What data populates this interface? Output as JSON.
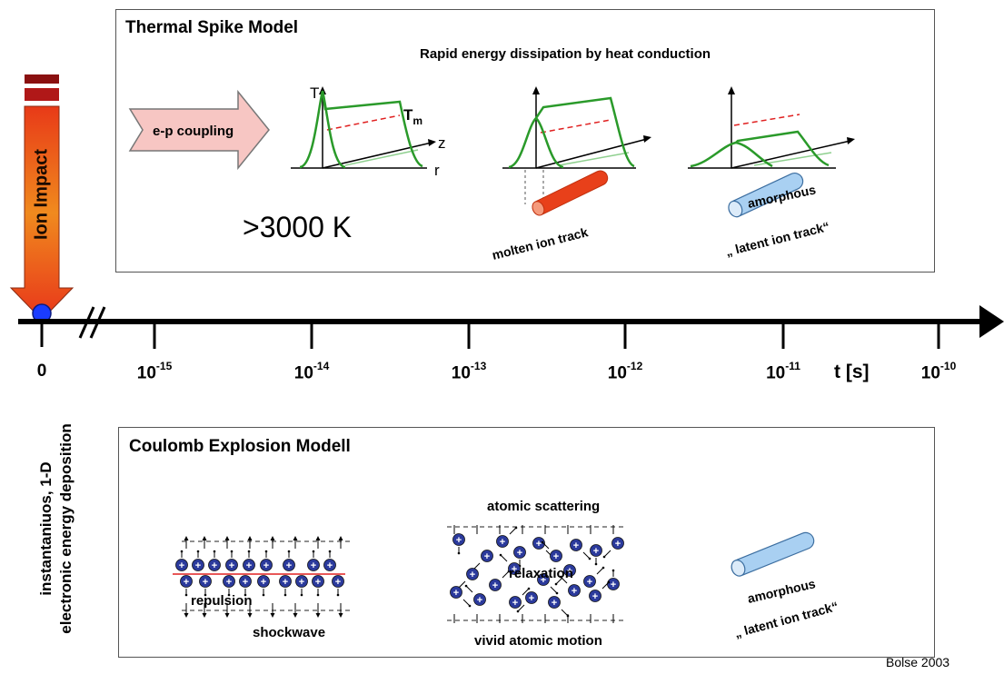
{
  "thermal_box": {
    "title": "Thermal Spike Model",
    "subtitle": "Rapid energy dissipation by heat conduction",
    "ep_coupling": "e-p coupling",
    "temperature": ">3000 K",
    "axis_T": "T",
    "axis_Tm": "T",
    "axis_Tm_sub": "m",
    "axis_z": "z",
    "axis_r": "r",
    "molten_label": "molten ion track",
    "amorphous_line1": "amorphous",
    "amorphous_line2": "„ latent ion track“"
  },
  "ion_impact": {
    "label": "Ion Impact"
  },
  "timeline": {
    "zero": "0",
    "unit": "t [s]",
    "ticks": [
      {
        "base": "10",
        "exp": "-15"
      },
      {
        "base": "10",
        "exp": "-14"
      },
      {
        "base": "10",
        "exp": "-13"
      },
      {
        "base": "10",
        "exp": "-12"
      },
      {
        "base": "10",
        "exp": "-11"
      },
      {
        "base": "10",
        "exp": "-10"
      }
    ]
  },
  "side_note": {
    "line1": "instantaniuos, 1-D",
    "line2": "electronic energy deposition"
  },
  "coulomb_box": {
    "title": "Coulomb Explosion Modell",
    "repulsion": "repulsion",
    "shockwave": "shockwave",
    "atomic_scattering": "atomic scattering",
    "relaxation": "relaxation",
    "vivid_motion": "vivid atomic motion",
    "amorphous_line1": "amorphous",
    "amorphous_line2": "„ latent ion track“",
    "ion_symbol": "+"
  },
  "credit": "Bolse 2003",
  "colors": {
    "green": "#2a9a2a",
    "red_dashed": "#e02020",
    "molten": "#e8401a",
    "amorphous": "#a9d0f2",
    "ion": "#2b3a9c",
    "arrow_fill": "#f7c6c3"
  }
}
